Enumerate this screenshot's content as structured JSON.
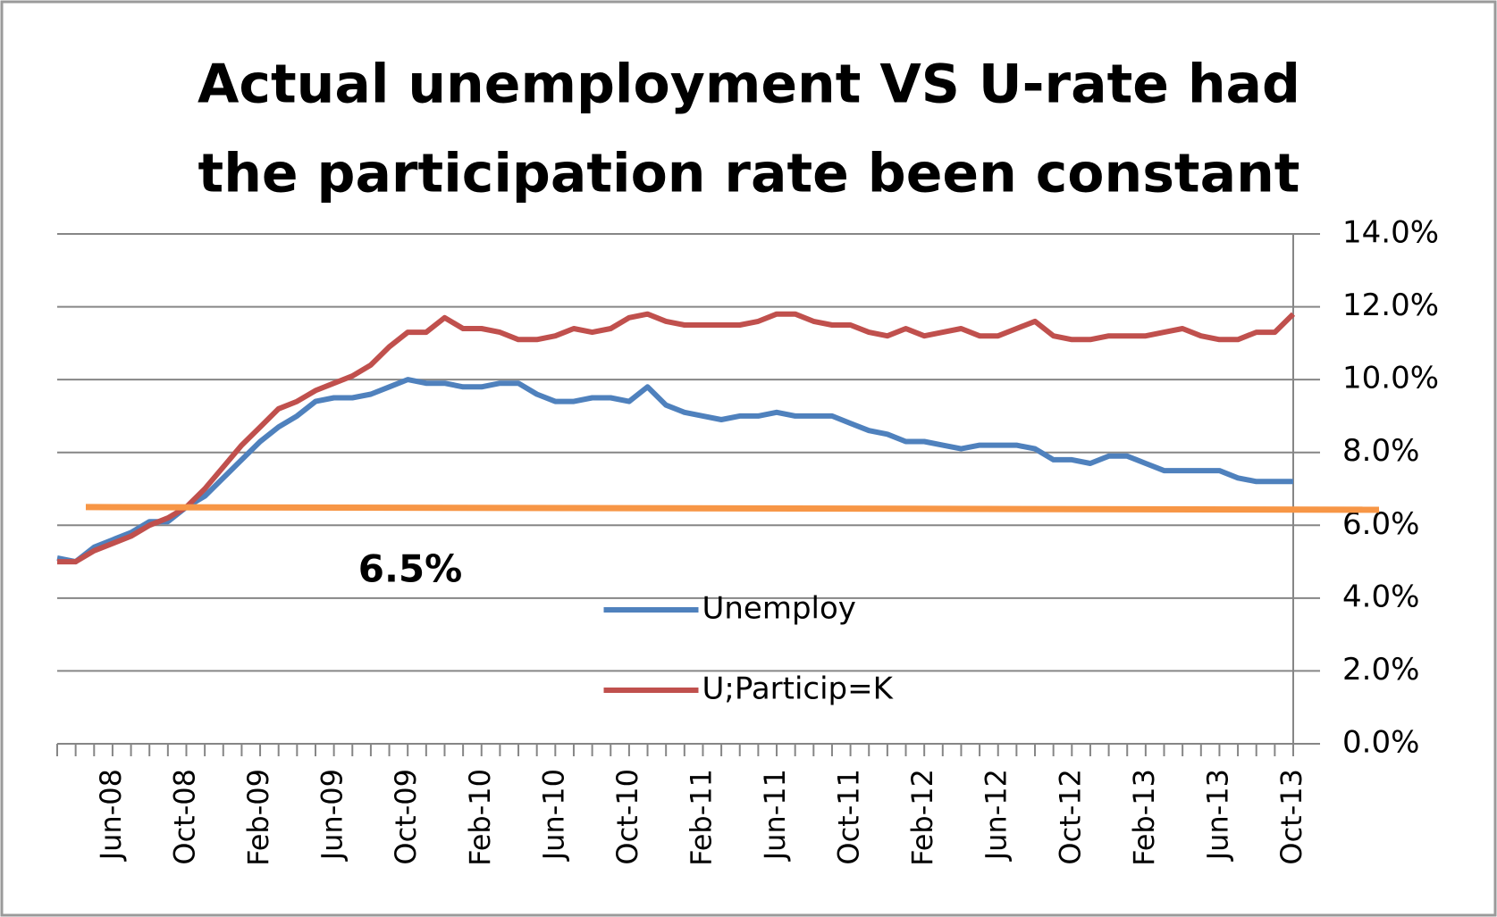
{
  "chart_data": {
    "type": "line",
    "title": [
      "Actual unemployment  VS U-rate had",
      "the participation  rate been constant"
    ],
    "categories": [
      null,
      null,
      null,
      "Jun-08",
      null,
      null,
      null,
      "Oct-08",
      null,
      null,
      null,
      "Feb-09",
      null,
      null,
      null,
      "Jun-09",
      null,
      null,
      null,
      "Oct-09",
      null,
      null,
      null,
      "Feb-10",
      null,
      null,
      null,
      "Jun-10",
      null,
      null,
      null,
      "Oct-10",
      null,
      null,
      null,
      "Feb-11",
      null,
      null,
      null,
      "Jun-11",
      null,
      null,
      null,
      "Oct-11",
      null,
      null,
      null,
      "Feb-12",
      null,
      null,
      null,
      "Jun-12",
      null,
      null,
      null,
      "Oct-12",
      null,
      null,
      null,
      "Feb-13",
      null,
      null,
      null,
      "Jun-13",
      null,
      null,
      null,
      "Oct-13"
    ],
    "series": [
      {
        "name": "Unemploy",
        "color": "#4f81bd",
        "values": [
          5.1,
          5.0,
          5.4,
          5.6,
          5.8,
          6.1,
          6.1,
          6.5,
          6.8,
          7.3,
          7.8,
          8.3,
          8.7,
          9.0,
          9.4,
          9.5,
          9.5,
          9.6,
          9.8,
          10.0,
          9.9,
          9.9,
          9.8,
          9.8,
          9.9,
          9.9,
          9.6,
          9.4,
          9.4,
          9.5,
          9.5,
          9.4,
          9.8,
          9.3,
          9.1,
          9.0,
          8.9,
          9.0,
          9.0,
          9.1,
          9.0,
          9.0,
          9.0,
          8.8,
          8.6,
          8.5,
          8.3,
          8.3,
          8.2,
          8.1,
          8.2,
          8.2,
          8.2,
          8.1,
          7.8,
          7.8,
          7.7,
          7.9,
          7.9,
          7.7,
          7.5,
          7.5,
          7.5,
          7.5,
          7.3,
          7.2,
          7.2,
          7.2
        ]
      },
      {
        "name": "U;Particip=K",
        "color": "#c0504d",
        "values": [
          5.0,
          5.0,
          5.3,
          5.5,
          5.7,
          6.0,
          6.2,
          6.5,
          7.0,
          7.6,
          8.2,
          8.7,
          9.2,
          9.4,
          9.7,
          9.9,
          10.1,
          10.4,
          10.9,
          11.3,
          11.3,
          11.7,
          11.4,
          11.4,
          11.3,
          11.1,
          11.1,
          11.2,
          11.4,
          11.3,
          11.4,
          11.7,
          11.8,
          11.6,
          11.5,
          11.5,
          11.5,
          11.5,
          11.6,
          11.8,
          11.8,
          11.6,
          11.5,
          11.5,
          11.3,
          11.2,
          11.4,
          11.2,
          11.3,
          11.4,
          11.2,
          11.2,
          11.4,
          11.6,
          11.2,
          11.1,
          11.1,
          11.2,
          11.2,
          11.2,
          11.3,
          11.4,
          11.2,
          11.1,
          11.1,
          11.3,
          11.3,
          11.8
        ]
      }
    ],
    "ylim": [
      0,
      14
    ],
    "yticks": [
      {
        "value": 0,
        "label": "0.0%"
      },
      {
        "value": 2,
        "label": "2.0%"
      },
      {
        "value": 4,
        "label": "4.0%"
      },
      {
        "value": 6,
        "label": "6.0%"
      },
      {
        "value": 8,
        "label": "8.0%"
      },
      {
        "value": 10,
        "label": "10.0%"
      },
      {
        "value": 12,
        "label": "12.0%"
      },
      {
        "value": 14,
        "label": "14.0%"
      }
    ],
    "y_axis_side": "right",
    "grid": true,
    "legend_position": "lower center",
    "reference_line": {
      "value": 6.5,
      "label": "6.5%",
      "color": "#f79646"
    }
  }
}
